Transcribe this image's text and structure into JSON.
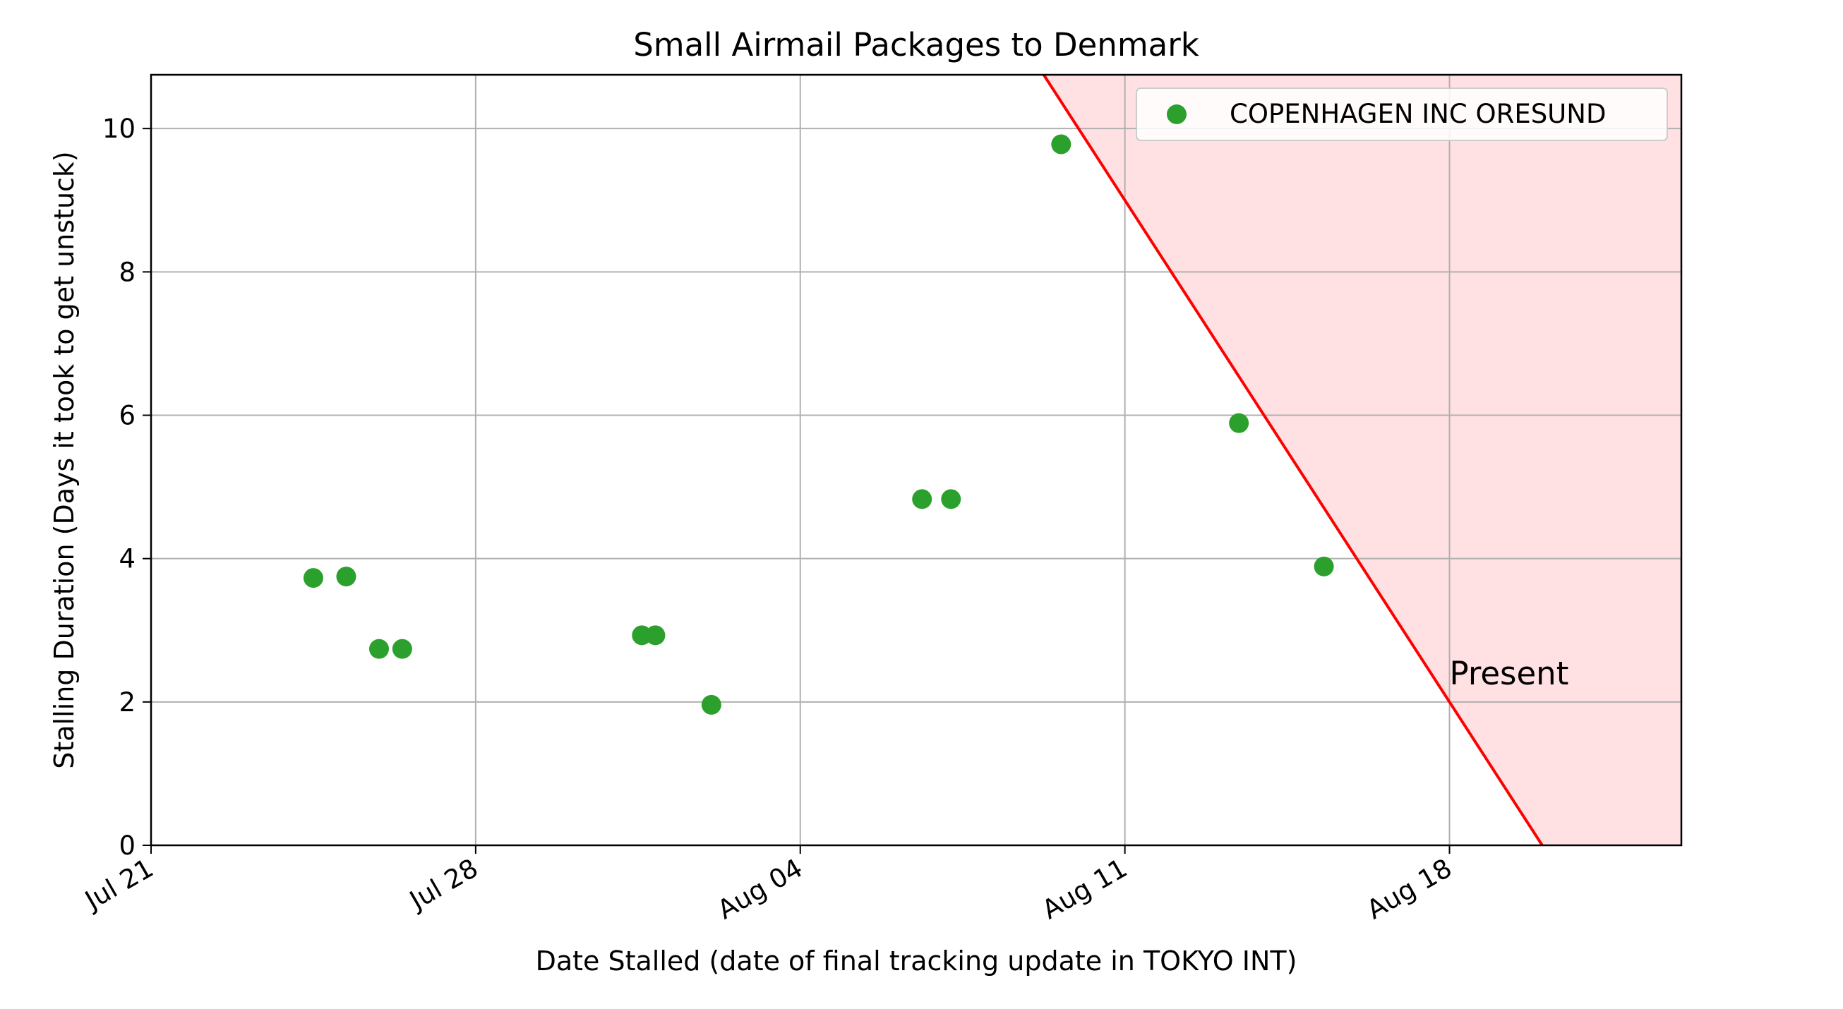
{
  "chart_data": {
    "type": "scatter",
    "title": "Small Airmail Packages to Denmark",
    "xlabel": "Date Stalled (date of final tracking update in TOKYO INT)",
    "ylabel": "Stalling Duration (Days it took to get unstuck)",
    "x_axis_type": "date",
    "year": 2021,
    "xlim": [
      "2021-07-21",
      "2021-08-23T00:00"
    ],
    "ylim": [
      0,
      10.75
    ],
    "grid": true,
    "legend_position": "top-right",
    "x_ticks": [
      {
        "date": "2021-07-21",
        "label": "Jul 21"
      },
      {
        "date": "2021-07-28",
        "label": "Jul 28"
      },
      {
        "date": "2021-08-04",
        "label": "Aug 04"
      },
      {
        "date": "2021-08-11",
        "label": "Aug 11"
      },
      {
        "date": "2021-08-18",
        "label": "Aug 18"
      }
    ],
    "y_ticks": [
      0,
      2,
      4,
      6,
      8,
      10
    ],
    "series": [
      {
        "name": "COPENHAGEN INC ORESUND",
        "color": "#2ca02c",
        "points": [
          {
            "x": "2021-07-24T12:00",
            "y": 3.73
          },
          {
            "x": "2021-07-25T05:00",
            "y": 3.75
          },
          {
            "x": "2021-07-25T22:00",
            "y": 2.74
          },
          {
            "x": "2021-07-26T10:00",
            "y": 2.74
          },
          {
            "x": "2021-07-31T14:00",
            "y": 2.93
          },
          {
            "x": "2021-07-31T21:00",
            "y": 2.93
          },
          {
            "x": "2021-08-02T02:00",
            "y": 1.96
          },
          {
            "x": "2021-08-06T15:00",
            "y": 4.83
          },
          {
            "x": "2021-08-07T06:00",
            "y": 4.83
          },
          {
            "x": "2021-08-09T15:00",
            "y": 9.78
          },
          {
            "x": "2021-08-13T11:00",
            "y": 5.89
          },
          {
            "x": "2021-08-15T07:00",
            "y": 3.89
          }
        ]
      }
    ],
    "present_line": {
      "label": "Present",
      "color": "#ff0000",
      "fill_color": "#ffe0e3",
      "present_date": "2021-08-20",
      "slope_days_per_day": -1,
      "label_at": {
        "x": "2021-08-18",
        "y": 2.4
      }
    }
  }
}
